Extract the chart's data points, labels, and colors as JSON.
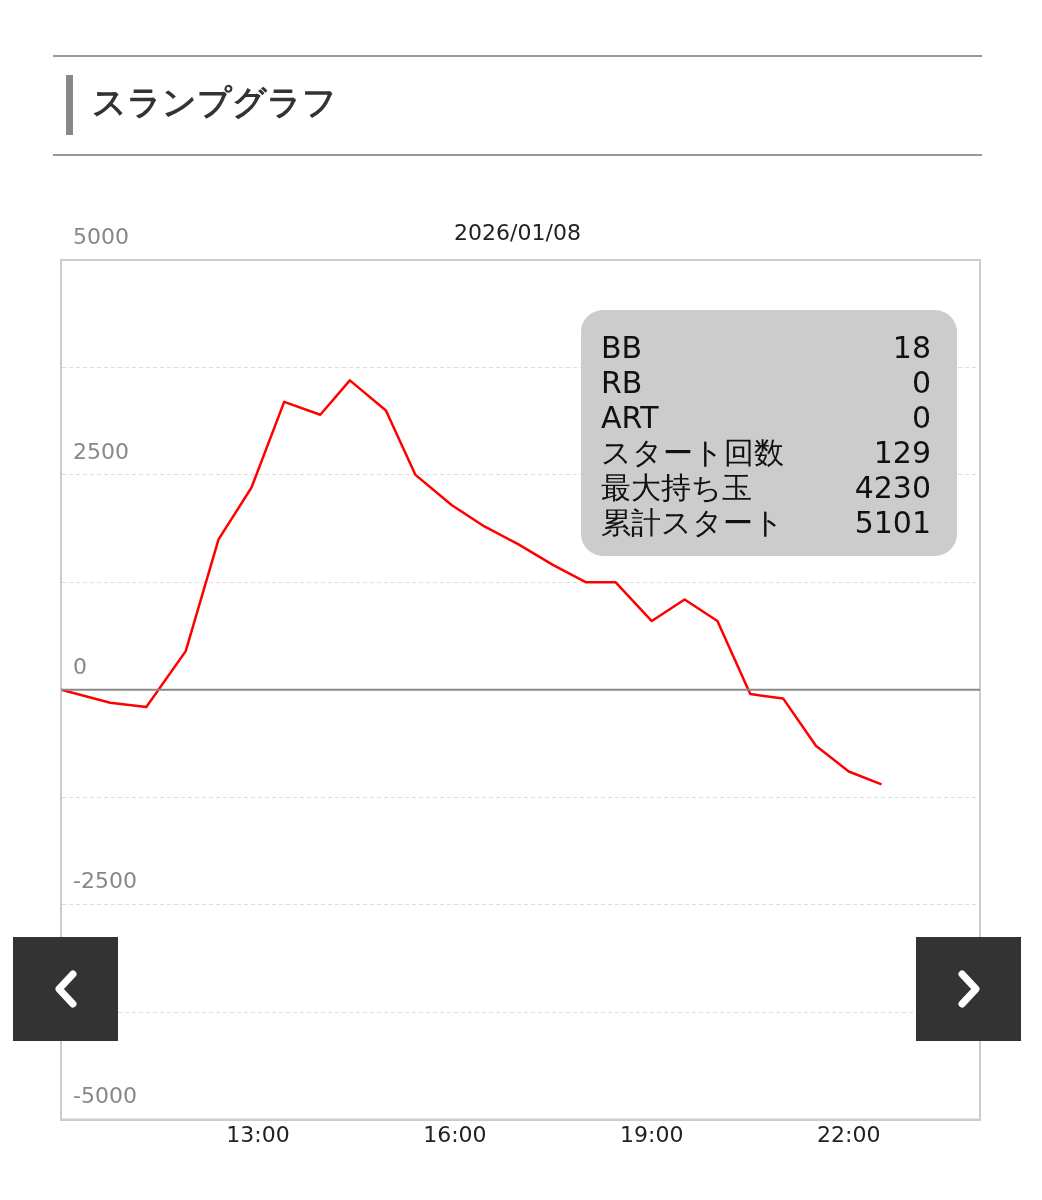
{
  "chart_data": {
    "type": "line",
    "title": "スランプグラフ",
    "subtitle": "2026/01/08",
    "x": [
      10,
      10.75,
      11.3,
      11.9,
      12.4,
      12.9,
      13.4,
      13.95,
      14.4,
      14.95,
      15.4,
      15.95,
      16.45,
      16.95,
      17.5,
      18,
      18.45,
      19,
      19.5,
      20,
      20.5,
      21,
      21.5,
      22,
      22.5
    ],
    "series": [
      {
        "color": "#ff0000",
        "values": [
          0,
          -150,
          -200,
          450,
          1750,
          2350,
          3350,
          3200,
          3600,
          3250,
          2500,
          2150,
          1900,
          1700,
          1450,
          1250,
          1250,
          800,
          1050,
          800,
          -50,
          -100,
          -650,
          -950,
          -1100
        ]
      }
    ],
    "xlim": [
      10,
      24
    ],
    "xticks": [
      {
        "value": 13,
        "label": "13:00"
      },
      {
        "value": 16,
        "label": "16:00"
      },
      {
        "value": 19,
        "label": "19:00"
      },
      {
        "value": 22,
        "label": "22:00"
      }
    ],
    "ylim": [
      -5000,
      5000
    ],
    "yticks": [
      -5000,
      {
        "value": -3750,
        "label": null
      },
      -2500,
      {
        "value": -1250,
        "label": null
      },
      0,
      {
        "value": 1250,
        "label": null
      },
      2500,
      {
        "value": 3750,
        "label": null
      },
      5000
    ],
    "ref_lines": [
      {
        "axis": "y",
        "value": 0,
        "color": "#888888"
      }
    ],
    "annotations": [
      "BB",
      "18",
      "RB",
      "0",
      "ART",
      "0",
      "スタート回数",
      "129",
      "最大持ち玉",
      "4230",
      "累計スタート",
      "5101"
    ],
    "grid": "y",
    "legend": false,
    "marker": "none",
    "line_style": "solid"
  }
}
